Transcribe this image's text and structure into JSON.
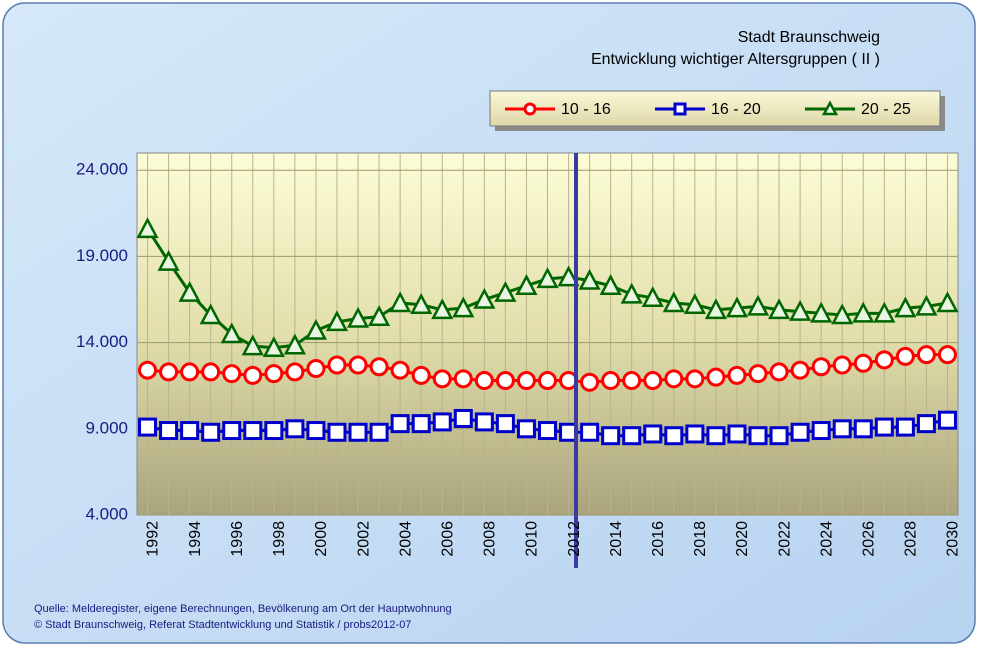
{
  "chart_data": {
    "type": "line",
    "title": "Stadt Braunschweig",
    "subtitle": "Entwicklung wichtiger Altersgruppen ( II )",
    "categories": [
      "1992",
      null,
      "1994",
      null,
      "1996",
      null,
      "1998",
      null,
      "2000",
      null,
      "2002",
      null,
      "2004",
      null,
      "2006",
      null,
      "2008",
      null,
      "2010",
      null,
      "2012",
      null,
      "2014",
      null,
      "2016",
      null,
      "2018",
      null,
      "2020",
      null,
      "2022",
      null,
      "2024",
      null,
      "2026",
      null,
      "2028",
      null,
      "2030"
    ],
    "series": [
      {
        "name": "10 - 16",
        "color": "#ff0000",
        "marker": "circle",
        "values": [
          12400,
          12300,
          12300,
          12300,
          12200,
          12100,
          12200,
          12300,
          12500,
          12700,
          12700,
          12600,
          12400,
          12100,
          11900,
          11900,
          11800,
          11800,
          11800,
          11800,
          11800,
          11700,
          11800,
          11800,
          11800,
          11900,
          11900,
          12000,
          12100,
          12200,
          12300,
          12400,
          12600,
          12700,
          12800,
          13000,
          13200,
          13300,
          13300
        ]
      },
      {
        "name": "16 - 20",
        "color": "#0000cc",
        "marker": "square",
        "values": [
          9100,
          8900,
          8900,
          8800,
          8900,
          8900,
          8900,
          9000,
          8900,
          8800,
          8800,
          8800,
          9300,
          9300,
          9400,
          9600,
          9400,
          9300,
          9000,
          8900,
          8800,
          8800,
          8600,
          8600,
          8700,
          8600,
          8700,
          8600,
          8700,
          8600,
          8600,
          8800,
          8900,
          9000,
          9000,
          9100,
          9100,
          9300,
          9500
        ]
      },
      {
        "name": "20 - 25",
        "color": "#006600",
        "marker": "triangle",
        "values": [
          20600,
          18700,
          16900,
          15600,
          14500,
          13800,
          13700,
          13850,
          14700,
          15200,
          15400,
          15500,
          16300,
          16200,
          15900,
          16000,
          16500,
          16900,
          17300,
          17700,
          17800,
          17600,
          17300,
          16800,
          16600,
          16300,
          16200,
          15900,
          16000,
          16100,
          15900,
          15800,
          15700,
          15600,
          15700,
          15700,
          16000,
          16100,
          16300
        ]
      }
    ],
    "ylim": [
      4000,
      25000
    ],
    "yticks": [
      {
        "value": 4000,
        "label": "4.000"
      },
      {
        "value": 9000,
        "label": "9.000"
      },
      {
        "value": 14000,
        "label": "14.000"
      },
      {
        "value": 19000,
        "label": "19.000"
      },
      {
        "value": 24000,
        "label": "24.000"
      }
    ],
    "grid": true,
    "legend": "top-right",
    "source": [
      "Quelle: Melderegister, eigene Berechnungen, Bevölkerung am Ort der Hauptwohnung",
      "© Stadt Braunschweig, Referat Stadtentwicklung und Statistik / probs2012-07"
    ]
  }
}
